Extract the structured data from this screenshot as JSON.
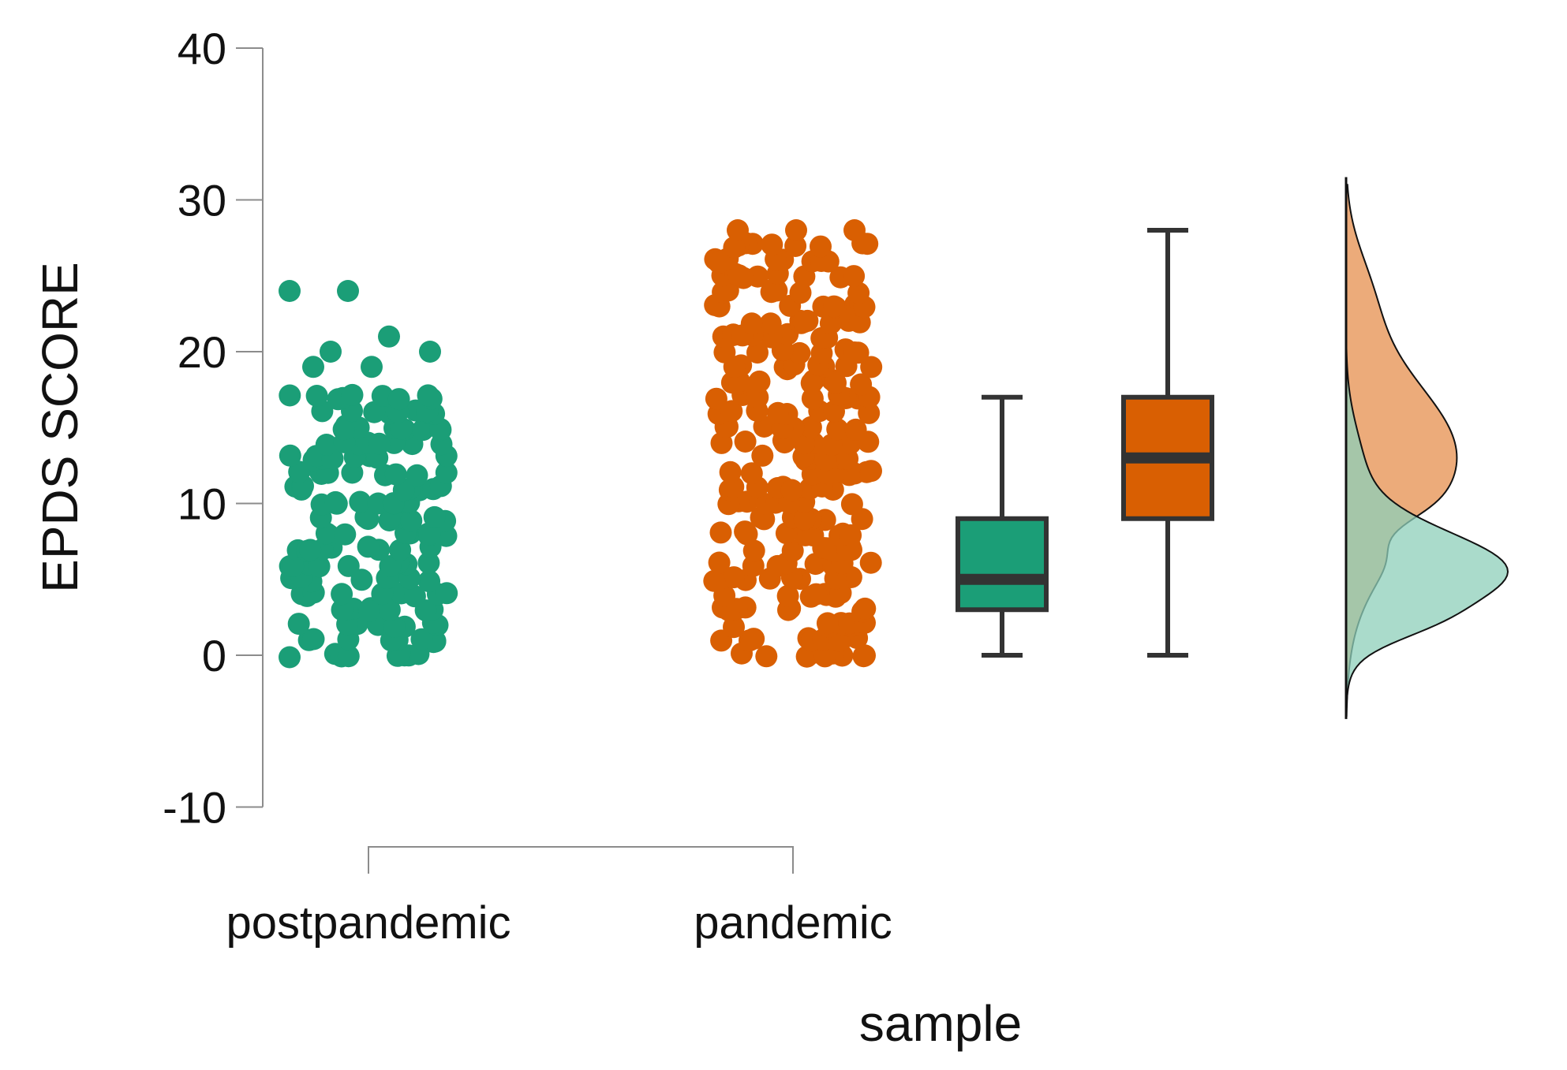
{
  "chart_data": {
    "type": "raincloud",
    "ylabel": "EPDS SCORE",
    "xlabel": "sample",
    "ylim": [
      -10,
      40
    ],
    "yticks": [
      -10,
      0,
      10,
      20,
      30,
      40
    ],
    "grid": false,
    "categories": [
      "postpandemic",
      "pandemic"
    ],
    "series": [
      {
        "name": "postpandemic",
        "color": "#1b9e77",
        "density_color": "#8ecfb9",
        "box": {
          "min": 0,
          "q1": 3,
          "median": 5,
          "q3": 9,
          "max": 17
        },
        "points": {
          "min": 0,
          "dense_max": 17,
          "extra": [
            19,
            19,
            20,
            20,
            21,
            24,
            24
          ]
        }
      },
      {
        "name": "pandemic",
        "color": "#d95f02",
        "density_color": "#eba673",
        "box": {
          "min": 0,
          "q1": 9,
          "median": 13,
          "q3": 17,
          "max": 28
        },
        "points": {
          "min": 0,
          "dense_max": 27,
          "extra": [
            28,
            28,
            28
          ]
        }
      }
    ]
  }
}
